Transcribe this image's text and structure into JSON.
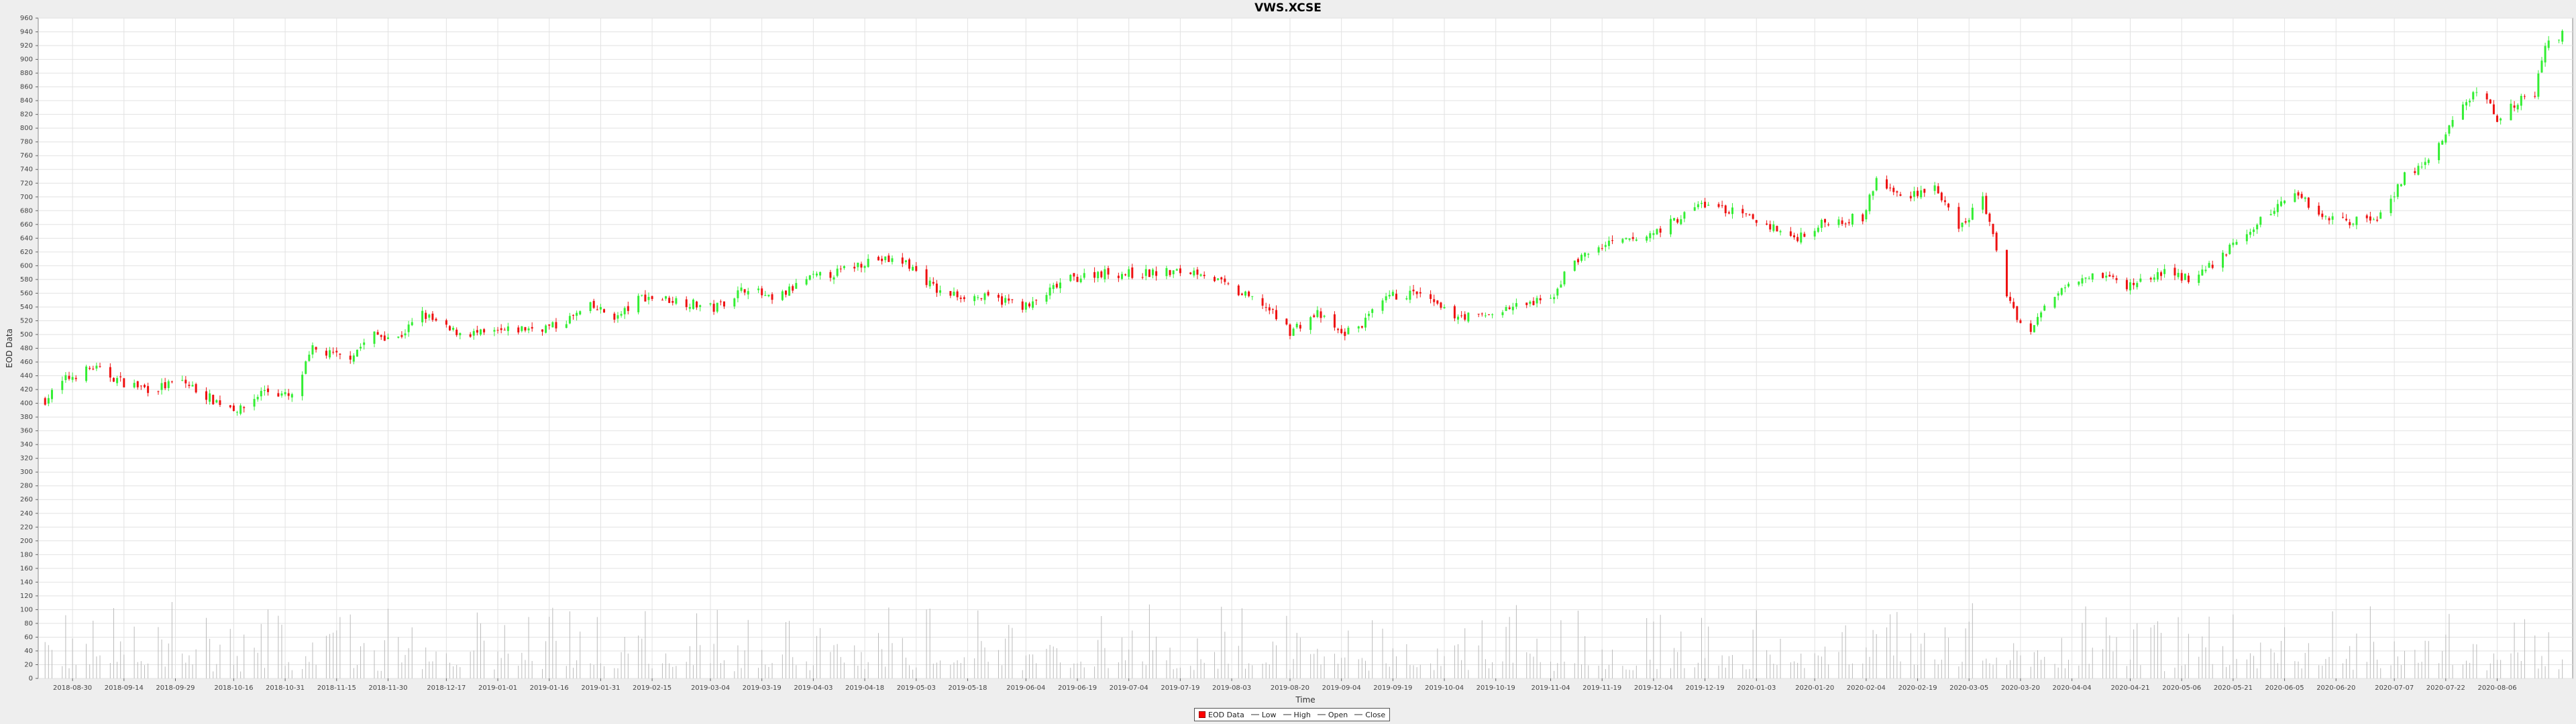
{
  "colors": {
    "up": "#33ee33",
    "down": "#ee1111",
    "volume": "#bbbbbb",
    "grid": "#e2e2e2",
    "plot_bg": "#ffffff"
  },
  "chart_data": {
    "type": "candlestick",
    "title": "VWS.XCSE",
    "ylabel": "EOD Data",
    "xlabel": "Time",
    "ylim": [
      0,
      960
    ],
    "yticks": [
      0,
      20,
      40,
      60,
      80,
      100,
      120,
      140,
      160,
      180,
      200,
      220,
      240,
      260,
      280,
      300,
      320,
      340,
      360,
      380,
      400,
      420,
      440,
      460,
      480,
      500,
      520,
      540,
      560,
      580,
      600,
      620,
      640,
      660,
      680,
      700,
      720,
      740,
      760,
      780,
      800,
      820,
      840,
      860,
      880,
      900,
      920,
      940,
      960
    ],
    "x_tick_labels": [
      "2018-08-30",
      "2018-09-14",
      "2018-09-29",
      "2018-10-16",
      "2018-10-31",
      "2018-11-15",
      "2018-11-30",
      "2018-12-17",
      "2019-01-01",
      "2019-01-16",
      "2019-01-31",
      "2019-02-15",
      "2019-03-04",
      "2019-03-19",
      "2019-04-03",
      "2019-04-18",
      "2019-05-03",
      "2019-05-18",
      "2019-06-04",
      "2019-06-19",
      "2019-07-04",
      "2019-07-19",
      "2019-08-03",
      "2019-08-20",
      "2019-09-04",
      "2019-09-19",
      "2019-10-04",
      "2019-10-19",
      "2019-11-04",
      "2019-11-19",
      "2019-12-04",
      "2019-12-19",
      "2020-01-03",
      "2020-01-20",
      "2020-02-04",
      "2020-02-19",
      "2020-03-05",
      "2020-03-20",
      "2020-04-04",
      "2020-04-21",
      "2020-05-06",
      "2020-05-21",
      "2020-06-05",
      "2020-06-20",
      "2020-07-07",
      "2020-07-22",
      "2020-08-06"
    ],
    "close_anchors": [
      [
        "2018-08-22",
        405
      ],
      [
        "2018-08-28",
        435
      ],
      [
        "2018-09-05",
        452
      ],
      [
        "2018-09-14",
        430
      ],
      [
        "2018-09-22",
        420
      ],
      [
        "2018-10-01",
        432
      ],
      [
        "2018-10-10",
        405
      ],
      [
        "2018-10-18",
        390
      ],
      [
        "2018-10-25",
        420
      ],
      [
        "2018-11-02",
        408
      ],
      [
        "2018-11-08",
        478
      ],
      [
        "2018-11-18",
        465
      ],
      [
        "2018-11-26",
        500
      ],
      [
        "2018-12-03",
        495
      ],
      [
        "2018-12-10",
        530
      ],
      [
        "2018-12-18",
        505
      ],
      [
        "2018-12-28",
        500
      ],
      [
        "2019-01-08",
        508
      ],
      [
        "2019-01-18",
        512
      ],
      [
        "2019-01-28",
        540
      ],
      [
        "2019-02-05",
        525
      ],
      [
        "2019-02-12",
        555
      ],
      [
        "2019-02-22",
        550
      ],
      [
        "2019-03-05",
        538
      ],
      [
        "2019-03-15",
        570
      ],
      [
        "2019-03-22",
        548
      ],
      [
        "2019-04-01",
        580
      ],
      [
        "2019-04-10",
        590
      ],
      [
        "2019-04-20",
        610
      ],
      [
        "2019-04-30",
        605
      ],
      [
        "2019-05-10",
        560
      ],
      [
        "2019-05-20",
        555
      ],
      [
        "2019-05-30",
        548
      ],
      [
        "2019-06-05",
        540
      ],
      [
        "2019-06-15",
        578
      ],
      [
        "2019-06-25",
        590
      ],
      [
        "2019-07-05",
        588
      ],
      [
        "2019-07-15",
        590
      ],
      [
        "2019-07-25",
        592
      ],
      [
        "2019-08-05",
        560
      ],
      [
        "2019-08-12",
        545
      ],
      [
        "2019-08-20",
        505
      ],
      [
        "2019-08-28",
        530
      ],
      [
        "2019-09-04",
        500
      ],
      [
        "2019-09-10",
        515
      ],
      [
        "2019-09-18",
        555
      ],
      [
        "2019-09-26",
        560
      ],
      [
        "2019-10-05",
        530
      ],
      [
        "2019-10-14",
        525
      ],
      [
        "2019-10-24",
        540
      ],
      [
        "2019-11-04",
        550
      ],
      [
        "2019-11-10",
        605
      ],
      [
        "2019-11-20",
        630
      ],
      [
        "2019-12-01",
        640
      ],
      [
        "2019-12-10",
        665
      ],
      [
        "2019-12-18",
        690
      ],
      [
        "2019-12-26",
        680
      ],
      [
        "2020-01-06",
        660
      ],
      [
        "2020-01-14",
        640
      ],
      [
        "2020-01-24",
        665
      ],
      [
        "2020-02-03",
        670
      ],
      [
        "2020-02-07",
        725
      ],
      [
        "2020-02-14",
        700
      ],
      [
        "2020-02-24",
        715
      ],
      [
        "2020-03-02",
        650
      ],
      [
        "2020-03-09",
        700
      ],
      [
        "2020-03-16",
        560
      ],
      [
        "2020-03-22",
        495
      ],
      [
        "2020-03-27",
        540
      ],
      [
        "2020-04-03",
        580
      ],
      [
        "2020-04-12",
        590
      ],
      [
        "2020-04-20",
        570
      ],
      [
        "2020-04-30",
        590
      ],
      [
        "2020-05-10",
        580
      ],
      [
        "2020-05-20",
        625
      ],
      [
        "2020-05-28",
        660
      ],
      [
        "2020-06-08",
        710
      ],
      [
        "2020-06-15",
        675
      ],
      [
        "2020-06-23",
        665
      ],
      [
        "2020-07-02",
        670
      ],
      [
        "2020-07-10",
        730
      ],
      [
        "2020-07-18",
        755
      ],
      [
        "2020-07-25",
        820
      ],
      [
        "2020-08-01",
        860
      ],
      [
        "2020-08-06",
        815
      ],
      [
        "2020-08-12",
        840
      ],
      [
        "2020-08-17",
        850
      ],
      [
        "2020-08-20",
        920
      ],
      [
        "2020-08-25",
        935
      ]
    ],
    "legend": [
      "EOD Data",
      "Low",
      "High",
      "Open",
      "Close"
    ]
  }
}
